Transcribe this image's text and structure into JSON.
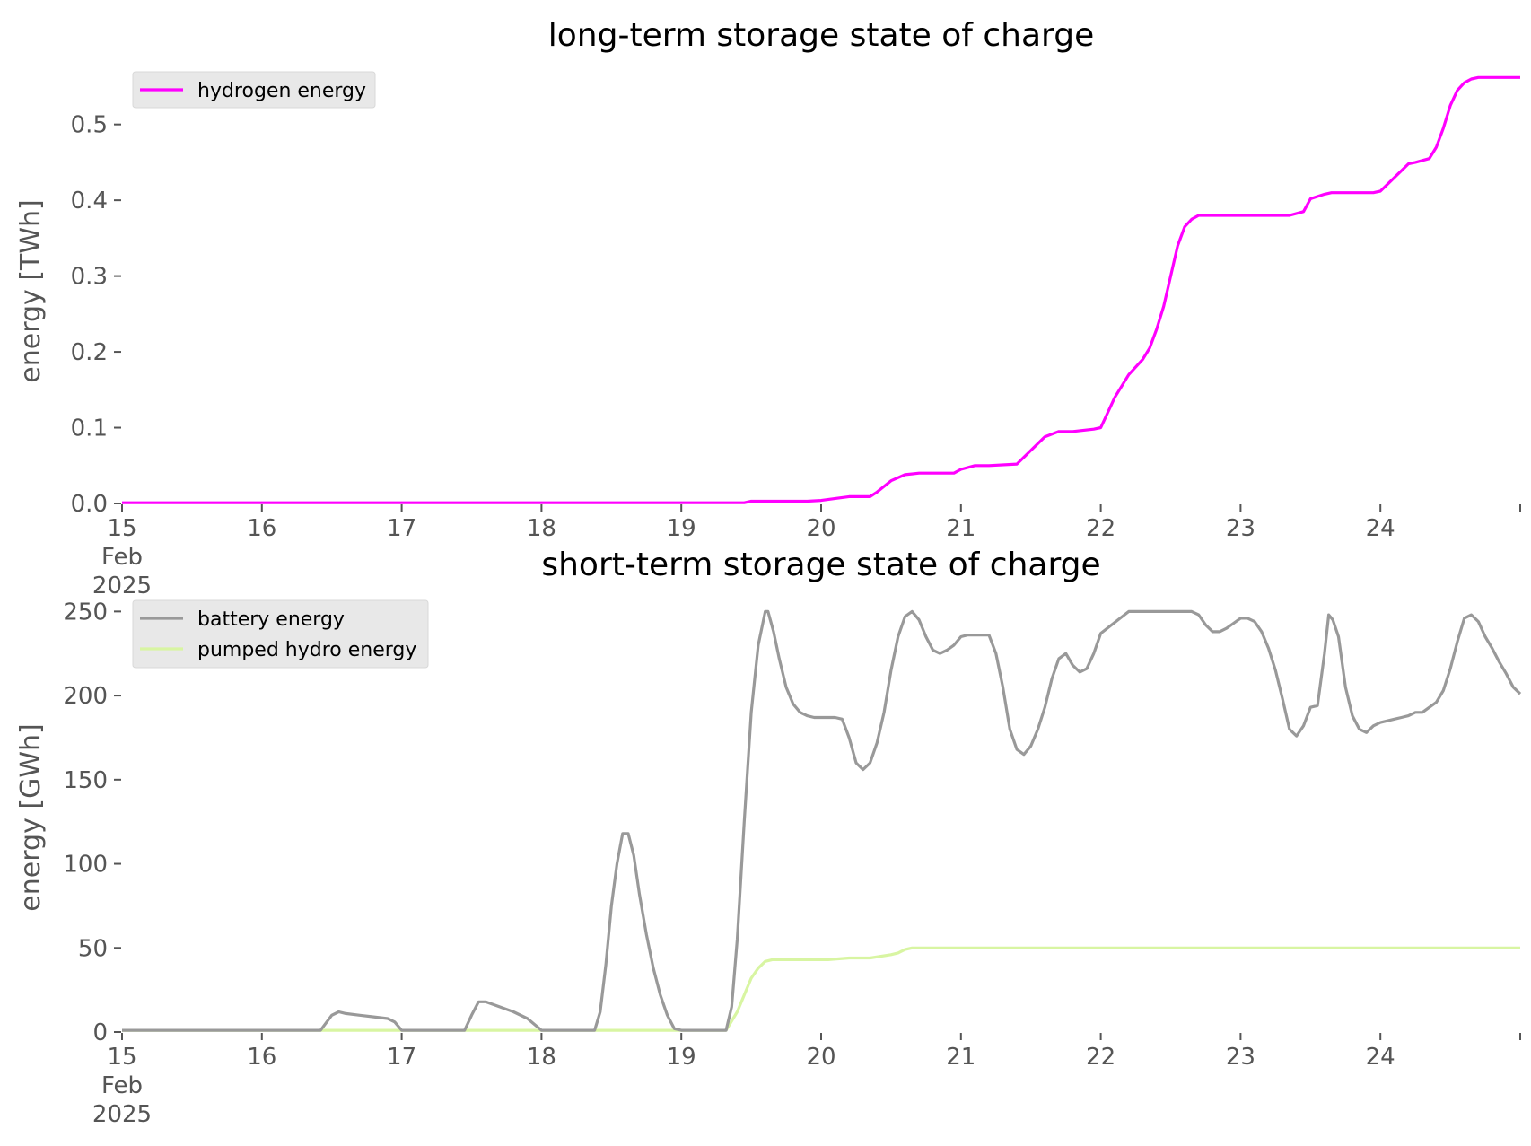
{
  "chart_data": [
    {
      "type": "line",
      "title": "long-term storage state of charge",
      "xlabel": "",
      "ylabel": "energy [TWh]",
      "x_tick_labels": [
        "15\nFeb\n2025",
        "16",
        "17",
        "18",
        "19",
        "20",
        "21",
        "22",
        "23",
        "24"
      ],
      "y_tick_labels": [
        "0.0",
        "0.1",
        "0.2",
        "0.3",
        "0.4",
        "0.5"
      ],
      "xlim": [
        "2025-02-15",
        "2025-02-25"
      ],
      "ylim": [
        0,
        0.56
      ],
      "grid": false,
      "legend_position": "top-left",
      "series": [
        {
          "name": "hydrogen energy",
          "color": "#ff00ff",
          "x_days": [
            15,
            19.45,
            19.5,
            19.9,
            20.0,
            20.12,
            20.2,
            20.35,
            20.4,
            20.5,
            20.6,
            20.7,
            20.95,
            21.0,
            21.1,
            21.2,
            21.4,
            21.5,
            21.6,
            21.7,
            21.8,
            21.95,
            22.0,
            22.1,
            22.2,
            22.3,
            22.35,
            22.4,
            22.45,
            22.5,
            22.55,
            22.6,
            22.65,
            22.7,
            22.8,
            23.35,
            23.45,
            23.5,
            23.6,
            23.65,
            23.8,
            23.95,
            24.0,
            24.1,
            24.2,
            24.25,
            24.35,
            24.4,
            24.45,
            24.5,
            24.55,
            24.6,
            24.65,
            24.7,
            24.75,
            24.85,
            25.0
          ],
          "values": [
            0.001,
            0.001,
            0.003,
            0.003,
            0.004,
            0.007,
            0.009,
            0.009,
            0.015,
            0.03,
            0.038,
            0.04,
            0.04,
            0.045,
            0.05,
            0.05,
            0.052,
            0.07,
            0.088,
            0.095,
            0.095,
            0.098,
            0.1,
            0.14,
            0.17,
            0.19,
            0.205,
            0.23,
            0.26,
            0.3,
            0.34,
            0.365,
            0.375,
            0.38,
            0.38,
            0.38,
            0.385,
            0.402,
            0.408,
            0.41,
            0.41,
            0.41,
            0.412,
            0.43,
            0.448,
            0.45,
            0.455,
            0.47,
            0.495,
            0.525,
            0.545,
            0.555,
            0.56,
            0.562,
            0.562,
            0.562,
            0.562
          ]
        }
      ]
    },
    {
      "type": "line",
      "title": "short-term storage state of charge",
      "xlabel": "",
      "ylabel": "energy [GWh]",
      "x_tick_labels": [
        "15\nFeb\n2025",
        "16",
        "17",
        "18",
        "19",
        "20",
        "21",
        "22",
        "23",
        "24"
      ],
      "y_tick_labels": [
        "0",
        "50",
        "100",
        "150",
        "200",
        "250"
      ],
      "xlim": [
        "2025-02-15",
        "2025-02-25"
      ],
      "ylim": [
        0,
        255
      ],
      "grid": false,
      "legend_position": "top-left",
      "series": [
        {
          "name": "battery energy",
          "color": "#999999",
          "x_days": [
            15,
            16.42,
            16.5,
            16.55,
            16.6,
            16.7,
            16.8,
            16.9,
            16.95,
            17.0,
            17.45,
            17.5,
            17.55,
            17.6,
            17.7,
            17.8,
            17.9,
            18.0,
            18.38,
            18.42,
            18.46,
            18.5,
            18.54,
            18.58,
            18.62,
            18.66,
            18.7,
            18.75,
            18.8,
            18.85,
            18.9,
            18.95,
            19.0,
            19.32,
            19.36,
            19.4,
            19.45,
            19.5,
            19.55,
            19.6,
            19.62,
            19.66,
            19.7,
            19.75,
            19.8,
            19.85,
            19.9,
            19.95,
            20.0,
            20.1,
            20.15,
            20.2,
            20.25,
            20.3,
            20.35,
            20.4,
            20.45,
            20.5,
            20.55,
            20.6,
            20.65,
            20.7,
            20.75,
            20.8,
            20.85,
            20.9,
            20.95,
            21.0,
            21.05,
            21.1,
            21.15,
            21.2,
            21.25,
            21.3,
            21.35,
            21.4,
            21.45,
            21.5,
            21.55,
            21.6,
            21.65,
            21.7,
            21.75,
            21.8,
            21.85,
            21.9,
            21.95,
            22.0,
            22.2,
            22.4,
            22.6,
            22.65,
            22.7,
            22.75,
            22.8,
            22.85,
            22.9,
            22.95,
            23.0,
            23.05,
            23.1,
            23.15,
            23.2,
            23.25,
            23.3,
            23.35,
            23.4,
            23.45,
            23.5,
            23.55,
            23.6,
            23.63,
            23.66,
            23.7,
            23.75,
            23.8,
            23.85,
            23.9,
            23.95,
            24.0,
            24.1,
            24.15,
            24.2,
            24.25,
            24.3,
            24.35,
            24.4,
            24.45,
            24.5,
            24.55,
            24.6,
            24.65,
            24.7,
            24.75,
            24.8,
            24.85,
            24.9,
            24.95,
            25.0
          ],
          "values": [
            1,
            1,
            10,
            12,
            11,
            10,
            9,
            8,
            6,
            1,
            1,
            10,
            18,
            18,
            15,
            12,
            8,
            1,
            1,
            12,
            40,
            75,
            100,
            118,
            118,
            105,
            82,
            58,
            38,
            22,
            10,
            2,
            1,
            1,
            15,
            55,
            125,
            190,
            230,
            250,
            250,
            238,
            222,
            205,
            195,
            190,
            188,
            187,
            187,
            187,
            186,
            175,
            160,
            156,
            160,
            172,
            190,
            215,
            235,
            247,
            250,
            245,
            235,
            227,
            225,
            227,
            230,
            235,
            236,
            236,
            236,
            236,
            225,
            205,
            180,
            168,
            165,
            170,
            180,
            193,
            210,
            222,
            225,
            218,
            214,
            216,
            225,
            237,
            250,
            250,
            250,
            250,
            248,
            242,
            238,
            238,
            240,
            243,
            246,
            246,
            244,
            238,
            228,
            215,
            198,
            180,
            176,
            182,
            193,
            194,
            225,
            248,
            245,
            235,
            205,
            188,
            180,
            178,
            182,
            184,
            186,
            187,
            188,
            190,
            190,
            193,
            196,
            203,
            216,
            232,
            246,
            248,
            244,
            235,
            228,
            220,
            213,
            205,
            201
          ]
        },
        {
          "name": "pumped hydro energy",
          "color": "#d8f5a2",
          "x_days": [
            15,
            19.32,
            19.4,
            19.5,
            19.55,
            19.6,
            19.65,
            19.7,
            20.0,
            20.05,
            20.2,
            20.35,
            20.5,
            20.55,
            20.6,
            20.65,
            20.7,
            25.0
          ],
          "values": [
            1,
            1,
            12,
            32,
            38,
            42,
            43,
            43,
            43,
            43,
            44,
            44,
            46,
            47,
            49,
            50,
            50,
            50
          ]
        }
      ]
    }
  ]
}
